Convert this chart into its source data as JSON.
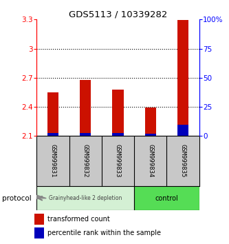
{
  "title": "GDS5113 / 10339282",
  "categories": [
    "GSM999831",
    "GSM999832",
    "GSM999833",
    "GSM999834",
    "GSM999835"
  ],
  "red_top": [
    2.55,
    2.68,
    2.58,
    2.395,
    3.295
  ],
  "blue_top": [
    2.135,
    2.135,
    2.135,
    2.125,
    2.215
  ],
  "bar_bottom": 2.1,
  "ylim_left": [
    2.1,
    3.3
  ],
  "ylim_right": [
    0,
    100
  ],
  "yticks_left": [
    2.1,
    2.4,
    2.7,
    3.0,
    3.3
  ],
  "yticks_right": [
    0,
    25,
    50,
    75,
    100
  ],
  "ytick_labels_left": [
    "2.1",
    "2.4",
    "2.7",
    "3",
    "3.3"
  ],
  "ytick_labels_right": [
    "0",
    "25",
    "50",
    "75",
    "100%"
  ],
  "dotted_lines": [
    2.4,
    2.7,
    3.0
  ],
  "bar_width": 0.35,
  "red_color": "#cc1100",
  "blue_color": "#0000bb",
  "group1_label": "Grainyhead-like 2 depletion",
  "group2_label": "control",
  "group1_color": "#d4f0d4",
  "group2_color": "#55dd55",
  "group1_indices": [
    0,
    1,
    2
  ],
  "group2_indices": [
    3,
    4
  ],
  "protocol_label": "protocol",
  "legend_red": "transformed count",
  "legend_blue": "percentile rank within the sample",
  "bg_color": "#ffffff",
  "tick_label_area_color": "#c8c8c8",
  "ax_bg": "#ffffff"
}
